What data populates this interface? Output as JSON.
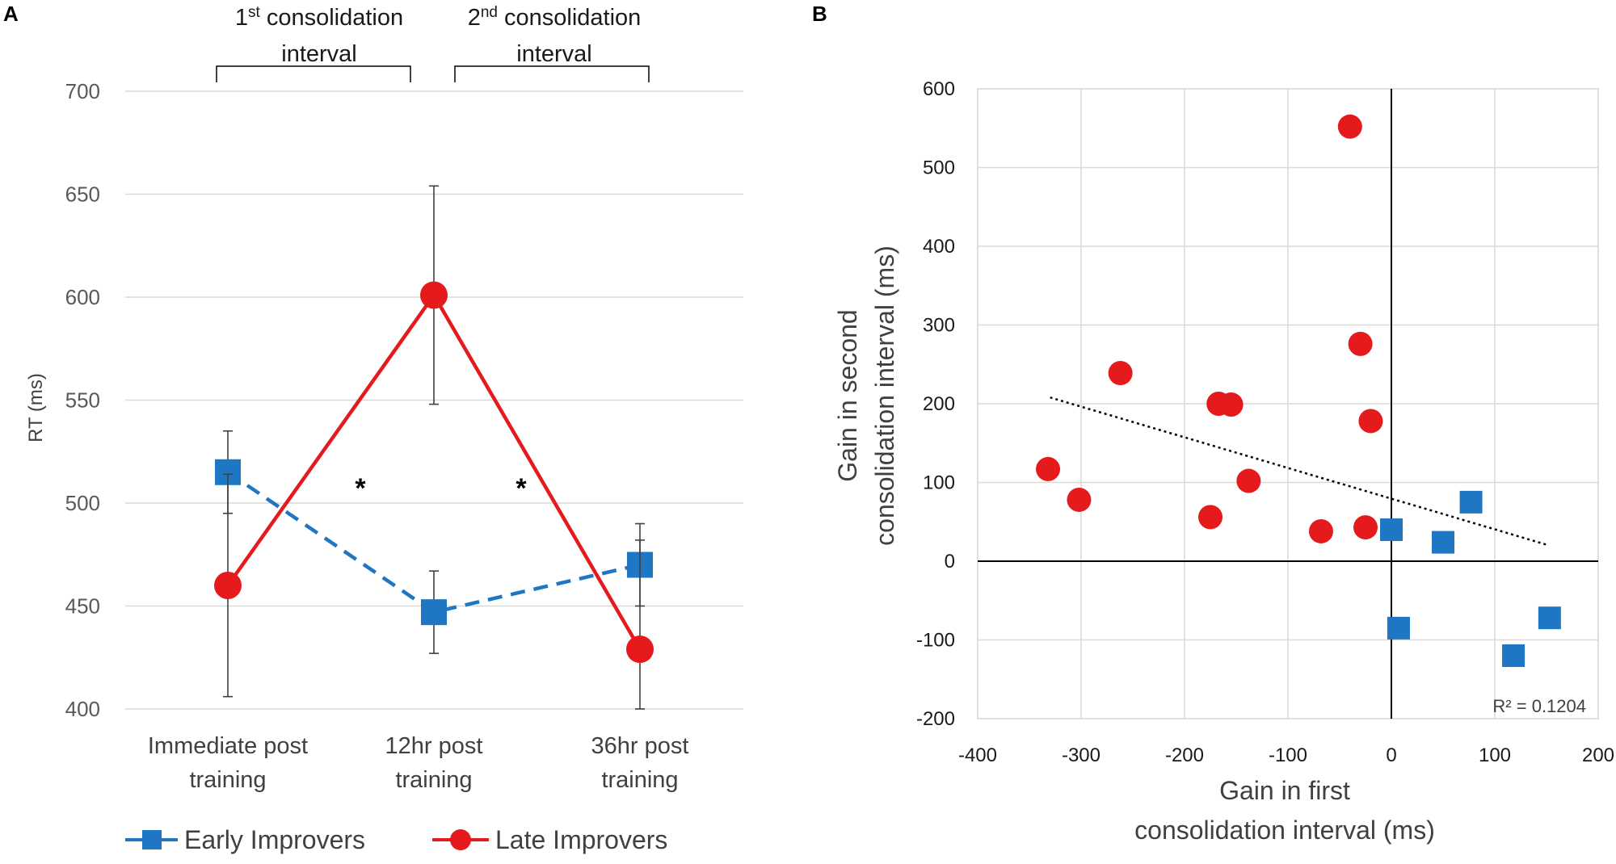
{
  "panel_a_label": "A",
  "panel_b_label": "B",
  "colors": {
    "early": "#1f77c4",
    "late": "#e41a1c",
    "grid": "#d9d9d9",
    "error": "#404040"
  },
  "chart_data": [
    {
      "type": "line",
      "title": "",
      "xlabel": "",
      "ylabel": "RT (ms)",
      "ylim": [
        400,
        700
      ],
      "yticks": [
        400,
        450,
        500,
        550,
        600,
        650,
        700
      ],
      "categories": [
        {
          "line1": "Immediate post",
          "line2": "training"
        },
        {
          "line1": "12hr post",
          "line2": "training"
        },
        {
          "line1": "36hr post",
          "line2": "training"
        }
      ],
      "series": [
        {
          "name": "Early Improvers",
          "marker": "square",
          "style": "dashed",
          "values": [
            515,
            447,
            470
          ],
          "error_low": [
            495,
            427,
            450
          ],
          "error_high": [
            535,
            467,
            490
          ]
        },
        {
          "name": "Late Improvers",
          "marker": "circle",
          "style": "solid",
          "values": [
            460,
            601,
            429
          ],
          "error_low": [
            406,
            548,
            400
          ],
          "error_high": [
            514,
            654,
            482
          ]
        }
      ],
      "brackets": [
        {
          "label_main": "1",
          "label_sup": "st",
          "label_rest": " consolidation",
          "label_line2": "interval",
          "from": 0,
          "to": 1
        },
        {
          "label_main": "2",
          "label_sup": "nd",
          "label_rest": " consolidation",
          "label_line2": "interval",
          "from": 1,
          "to": 2
        }
      ],
      "significance": [
        "*",
        "*"
      ],
      "legend": [
        "Early Improvers",
        "Late Improvers"
      ]
    },
    {
      "type": "scatter",
      "xlabel_line1": "Gain in first",
      "xlabel_line2": "consolidation interval (ms)",
      "ylabel_line1": "Gain in second",
      "ylabel_line2": "consolidation interval (ms)",
      "xlim": [
        -400,
        200
      ],
      "ylim": [
        -200,
        600
      ],
      "xticks": [
        -400,
        -300,
        -200,
        -100,
        0,
        100,
        200
      ],
      "yticks": [
        -200,
        -100,
        0,
        100,
        200,
        300,
        400,
        500,
        600
      ],
      "series": [
        {
          "name": "Late Improvers",
          "marker": "circle",
          "points": [
            [
              -40,
              552
            ],
            [
              -30,
              276
            ],
            [
              -262,
              239
            ],
            [
              -167,
              200
            ],
            [
              -155,
              199
            ],
            [
              -20,
              178
            ],
            [
              -332,
              117
            ],
            [
              -138,
              102
            ],
            [
              -302,
              78
            ],
            [
              -175,
              56
            ],
            [
              -68,
              38
            ],
            [
              -25,
              43
            ]
          ]
        },
        {
          "name": "Early Improvers",
          "marker": "square",
          "points": [
            [
              0,
              40
            ],
            [
              50,
              24
            ],
            [
              77,
              75
            ],
            [
              7,
              -85
            ],
            [
              118,
              -120
            ],
            [
              153,
              -72
            ]
          ]
        }
      ],
      "trendline": {
        "x": [
          -330,
          150
        ],
        "y": [
          208,
          21
        ]
      },
      "r_squared_label": "R² = 0.1204"
    }
  ]
}
